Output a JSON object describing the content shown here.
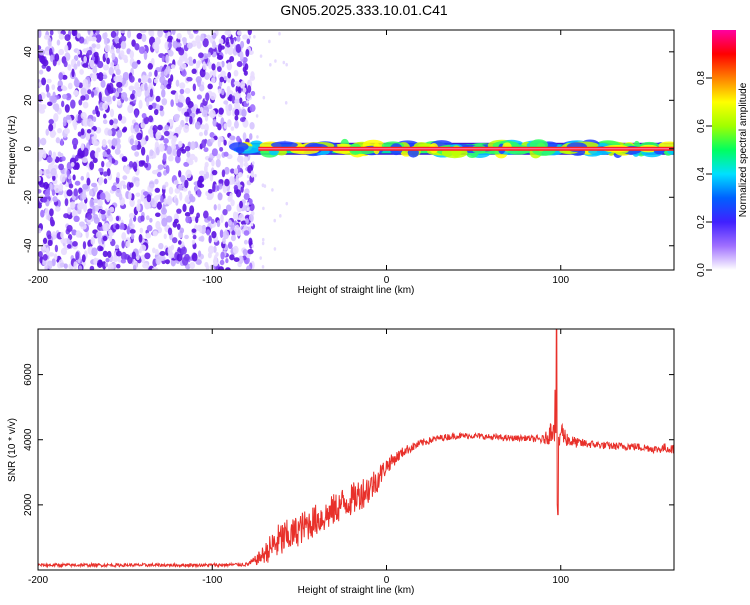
{
  "figure": {
    "title": "GN05.2025.333.10.01.C41"
  },
  "chart_data": [
    {
      "type": "heatmap",
      "title": "GN05.2025.333.10.01.C41",
      "xlabel": "Height of straight line (km)",
      "ylabel": "Frequency (Hz)",
      "xlim": [
        -200,
        165
      ],
      "ylim": [
        -50,
        49
      ],
      "x_ticks": [
        -200,
        -100,
        0,
        100
      ],
      "x_tick_labels": [
        "-200",
        "-100",
        "0",
        "100"
      ],
      "y_ticks": [
        -40,
        -20,
        0,
        20,
        40
      ],
      "y_tick_labels": [
        "-40",
        "-20",
        "0",
        "20",
        "40"
      ],
      "noise_region_x": [
        -200,
        -80
      ],
      "signal_line_x": [
        -85,
        165
      ],
      "signal_line_frequency_hz": 0,
      "colorbar": {
        "label": "Normalized spectral amplitude",
        "range": [
          0,
          1
        ],
        "ticks": [
          0.0,
          0.2,
          0.4,
          0.6,
          0.8
        ],
        "tick_labels": [
          "0.0",
          "0.2",
          "0.4",
          "0.6",
          "0.8"
        ],
        "colors": [
          "#ffffff",
          "#a070ff",
          "#4020ff",
          "#0060ff",
          "#00e0ff",
          "#00ff60",
          "#a0ff00",
          "#ffff00",
          "#ff8000",
          "#ff0000",
          "#ff00a0"
        ]
      },
      "line_color": "#e00000"
    },
    {
      "type": "line",
      "xlabel": "Height of straight line (km)",
      "ylabel": "SNR (10 * v/v)",
      "xlim": [
        -200,
        165
      ],
      "ylim": [
        0,
        7400
      ],
      "x_ticks": [
        -200,
        -100,
        0,
        100
      ],
      "x_tick_labels": [
        "-200",
        "-100",
        "0",
        "100"
      ],
      "y_ticks": [
        2000,
        4000,
        6000
      ],
      "y_tick_labels": [
        "2000",
        "4000",
        "6000"
      ],
      "line_color": "#e8302a",
      "series": [
        {
          "name": "SNR",
          "x": [
            -200,
            -150,
            -100,
            -80,
            -75,
            -70,
            -65,
            -60,
            -55,
            -50,
            -45,
            -40,
            -35,
            -30,
            -25,
            -20,
            -15,
            -10,
            -5,
            0,
            10,
            20,
            30,
            40,
            50,
            60,
            70,
            80,
            85,
            90,
            93,
            96,
            97,
            98,
            99,
            100,
            103,
            106,
            110,
            120,
            130,
            140,
            150,
            155,
            160,
            165
          ],
          "values": [
            150,
            150,
            150,
            170,
            300,
            500,
            750,
            950,
            1050,
            1250,
            1400,
            1550,
            1650,
            1850,
            2050,
            2150,
            2350,
            2500,
            2800,
            3200,
            3650,
            3900,
            4050,
            4120,
            4120,
            4080,
            4050,
            4050,
            4020,
            4000,
            4100,
            4500,
            5200,
            2400,
            3900,
            4300,
            4050,
            3950,
            3900,
            3850,
            3800,
            3800,
            3750,
            3700,
            3750,
            3700
          ],
          "noise_amplitude": [
            50,
            50,
            50,
            60,
            150,
            300,
            500,
            600,
            500,
            500,
            500,
            500,
            500,
            500,
            500,
            500,
            500,
            500,
            400,
            250,
            150,
            120,
            100,
            100,
            90,
            90,
            90,
            90,
            100,
            150,
            250,
            500,
            1400,
            600,
            500,
            400,
            250,
            200,
            150,
            120,
            120,
            120,
            120,
            120,
            150,
            120
          ]
        }
      ]
    }
  ]
}
